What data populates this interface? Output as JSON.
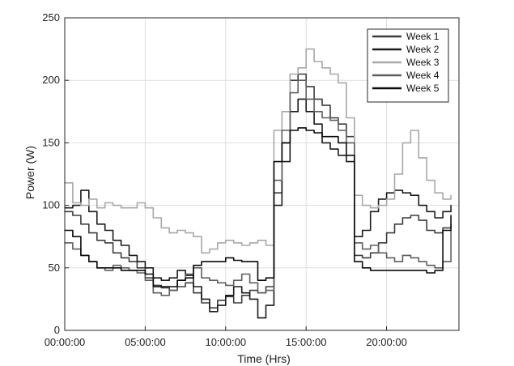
{
  "chart_data": {
    "type": "line",
    "title": "",
    "xlabel": "Time (Hrs)",
    "ylabel": "Power (W)",
    "xlim": [
      0,
      24.5
    ],
    "ylim": [
      0,
      250
    ],
    "x_unit": "hours",
    "grid": true,
    "legend_position": "top-right",
    "x_ticks": [
      {
        "value": 0,
        "label": "00:00:00"
      },
      {
        "value": 5,
        "label": "05:00:00"
      },
      {
        "value": 10,
        "label": "10:00:00"
      },
      {
        "value": 15,
        "label": "15:00:00"
      },
      {
        "value": 20,
        "label": "20:00:00"
      }
    ],
    "y_ticks": [
      {
        "value": 0,
        "label": "0"
      },
      {
        "value": 50,
        "label": "50"
      },
      {
        "value": 100,
        "label": "100"
      },
      {
        "value": 150,
        "label": "150"
      },
      {
        "value": 200,
        "label": "200"
      },
      {
        "value": 250,
        "label": "250"
      }
    ],
    "series": [
      {
        "name": "Week 1",
        "color": "#3c3c3c",
        "x": [
          0,
          0.5,
          1,
          1.5,
          2,
          2.5,
          3,
          3.5,
          4,
          4.5,
          5,
          5.5,
          6,
          6.5,
          7,
          7.5,
          8,
          8.5,
          9,
          9.5,
          10,
          10.5,
          11,
          11.5,
          12,
          12.5,
          13,
          13.5,
          14,
          14.5,
          15,
          15.5,
          16,
          16.5,
          17,
          17.5,
          18,
          18.5,
          19,
          19.5,
          20,
          20.5,
          21,
          21.5,
          22,
          22.5,
          23,
          23.5,
          24
        ],
        "y": [
          95,
          92,
          85,
          78,
          72,
          70,
          62,
          58,
          55,
          50,
          42,
          36,
          34,
          32,
          35,
          38,
          30,
          22,
          18,
          24,
          27,
          22,
          28,
          32,
          30,
          35,
          110,
          150,
          200,
          205,
          195,
          185,
          180,
          170,
          165,
          155,
          60,
          58,
          62,
          70,
          78,
          85,
          90,
          92,
          88,
          80,
          78,
          82,
          85
        ]
      },
      {
        "name": "Week 2",
        "color": "#1a1a1a",
        "x": [
          0,
          0.5,
          1,
          1.5,
          2,
          2.5,
          3,
          3.5,
          4,
          4.5,
          5,
          5.5,
          6,
          6.5,
          7,
          7.5,
          8,
          8.5,
          9,
          9.5,
          10,
          10.5,
          11,
          11.5,
          12,
          12.5,
          13,
          13.5,
          14,
          14.5,
          15,
          15.5,
          16,
          16.5,
          17,
          17.5,
          18,
          18.5,
          19,
          19.5,
          20,
          20.5,
          21,
          21.5,
          22,
          22.5,
          23,
          23.5,
          24
        ],
        "y": [
          98,
          100,
          112,
          95,
          85,
          80,
          72,
          68,
          60,
          55,
          50,
          42,
          40,
          42,
          48,
          44,
          35,
          25,
          15,
          20,
          28,
          35,
          30,
          25,
          10,
          20,
          100,
          135,
          175,
          185,
          175,
          165,
          150,
          145,
          140,
          135,
          75,
          80,
          95,
          105,
          110,
          112,
          110,
          108,
          100,
          95,
          90,
          95,
          100
        ]
      },
      {
        "name": "Week 3",
        "color": "#a8a8a8",
        "x": [
          0,
          0.5,
          1,
          1.5,
          2,
          2.5,
          3,
          3.5,
          4,
          4.5,
          5,
          5.5,
          6,
          6.5,
          7,
          7.5,
          8,
          8.5,
          9,
          9.5,
          10,
          10.5,
          11,
          11.5,
          12,
          12.5,
          13,
          13.5,
          14,
          14.5,
          15,
          15.5,
          16,
          16.5,
          17,
          17.5,
          18,
          18.5,
          19,
          19.5,
          20,
          20.5,
          21,
          21.5,
          22,
          22.5,
          23,
          23.5,
          24
        ],
        "y": [
          118,
          102,
          100,
          105,
          98,
          102,
          100,
          98,
          98,
          102,
          98,
          90,
          82,
          78,
          80,
          78,
          75,
          62,
          65,
          70,
          72,
          70,
          68,
          70,
          72,
          68,
          160,
          175,
          205,
          210,
          225,
          215,
          210,
          205,
          198,
          170,
          108,
          100,
          98,
          100,
          105,
          125,
          150,
          160,
          138,
          120,
          110,
          105,
          108
        ]
      },
      {
        "name": "Week 4",
        "color": "#5e5e5e",
        "x": [
          0,
          0.5,
          1,
          1.5,
          2,
          2.5,
          3,
          3.5,
          4,
          4.5,
          5,
          5.5,
          6,
          6.5,
          7,
          7.5,
          8,
          8.5,
          9,
          9.5,
          10,
          10.5,
          11,
          11.5,
          12,
          12.5,
          13,
          13.5,
          14,
          14.5,
          15,
          15.5,
          16,
          16.5,
          17,
          17.5,
          18,
          18.5,
          19,
          19.5,
          20,
          20.5,
          21,
          21.5,
          22,
          22.5,
          23,
          23.5,
          24
        ],
        "y": [
          70,
          65,
          60,
          55,
          50,
          48,
          52,
          50,
          48,
          46,
          40,
          30,
          28,
          32,
          40,
          45,
          50,
          42,
          40,
          38,
          36,
          40,
          45,
          38,
          30,
          32,
          120,
          160,
          190,
          200,
          185,
          175,
          170,
          168,
          160,
          150,
          70,
          65,
          68,
          62,
          58,
          55,
          60,
          58,
          55,
          52,
          50,
          55,
          80
        ]
      },
      {
        "name": "Week 5",
        "color": "#0a0a0a",
        "x": [
          0,
          0.5,
          1,
          1.5,
          2,
          2.5,
          3,
          3.5,
          4,
          4.5,
          5,
          5.5,
          6,
          6.5,
          7,
          7.5,
          8,
          8.5,
          9,
          9.5,
          10,
          10.5,
          11,
          11.5,
          12,
          12.5,
          13,
          13.5,
          14,
          14.5,
          15,
          15.5,
          16,
          16.5,
          17,
          17.5,
          18,
          18.5,
          19,
          19.5,
          20,
          20.5,
          21,
          21.5,
          22,
          22.5,
          23,
          23.5,
          24
        ],
        "y": [
          80,
          75,
          60,
          55,
          50,
          50,
          50,
          48,
          48,
          48,
          45,
          35,
          35,
          35,
          40,
          42,
          52,
          55,
          55,
          55,
          58,
          56,
          55,
          55,
          40,
          42,
          135,
          150,
          160,
          162,
          160,
          158,
          155,
          155,
          150,
          140,
          55,
          50,
          48,
          48,
          48,
          48,
          48,
          48,
          48,
          46,
          48,
          80,
          92
        ]
      }
    ]
  }
}
